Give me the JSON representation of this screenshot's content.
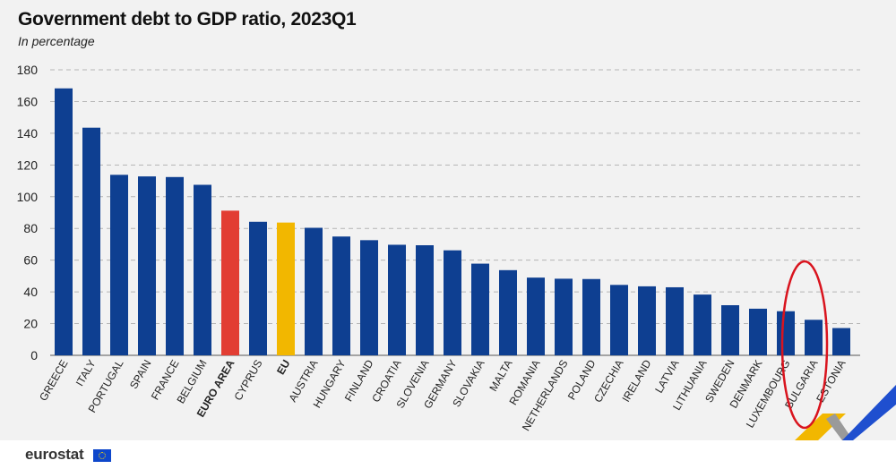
{
  "colors": {
    "bar": "#0e3f91",
    "euro_area": "#e23d33",
    "eu": "#f2b700",
    "grid": "#b5b5b5",
    "highlight_circle": "#d9141e"
  },
  "footer": {
    "logo_text": "eurostat"
  },
  "chart_data": {
    "type": "bar",
    "title": "Government debt to GDP ratio, 2023Q1",
    "subtitle": "In percentage",
    "xlabel": "",
    "ylabel": "",
    "ylim": [
      0,
      180
    ],
    "yticks": [
      0,
      20,
      40,
      60,
      80,
      100,
      120,
      140,
      160,
      180
    ],
    "grid": true,
    "categories": [
      "GREECE",
      "ITALY",
      "PORTUGAL",
      "SPAIN",
      "FRANCE",
      "BELGIUM",
      "EURO AREA",
      "CYPRUS",
      "EU",
      "AUSTRIA",
      "HUNGARY",
      "FINLAND",
      "CROATIA",
      "SLOVENIA",
      "GERMANY",
      "SLOVAKIA",
      "MALTA",
      "ROMANIA",
      "NETHERLANDS",
      "POLAND",
      "CZECHIA",
      "IRELAND",
      "LATVIA",
      "LITHUANIA",
      "SWEDEN",
      "DENMARK",
      "LUXEMBOURG",
      "BULGARIA",
      "ESTONIA"
    ],
    "values": [
      168.3,
      143.5,
      113.8,
      112.8,
      112.4,
      107.5,
      91.2,
      84.2,
      83.7,
      80.4,
      74.9,
      72.6,
      69.7,
      69.4,
      66.2,
      57.8,
      53.7,
      49.0,
      48.3,
      48.1,
      44.4,
      43.5,
      42.9,
      38.3,
      31.6,
      29.4,
      27.8,
      22.4,
      17.2
    ],
    "bold_categories": [
      "EURO AREA",
      "EU"
    ],
    "highlighted_category": "BULGARIA"
  }
}
